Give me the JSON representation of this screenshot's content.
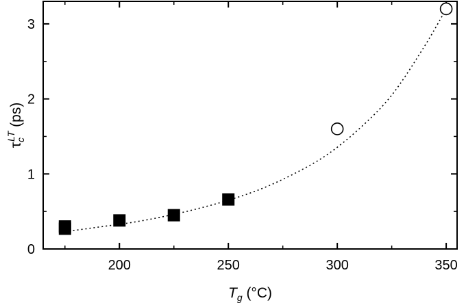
{
  "chart_data": {
    "type": "scatter",
    "xlabel": {
      "main": "T",
      "sub": "g",
      "rest": " (°C)"
    },
    "ylabel": {
      "main": "τ",
      "sub": "c",
      "sup": "LT",
      "rest": " (ps)"
    },
    "xlim": [
      165,
      355
    ],
    "ylim": [
      0,
      3.3
    ],
    "x_ticks": [
      200,
      250,
      300,
      350
    ],
    "x_minor_ticks": [
      175,
      225,
      275,
      325
    ],
    "y_ticks": [
      0,
      1,
      2,
      3
    ],
    "y_minor_ticks": [
      0.5,
      1.5,
      2.5
    ],
    "grid": false,
    "legend": "none",
    "series": [
      {
        "marker": "filled-square",
        "x": [
          175,
          175,
          200,
          225,
          250
        ],
        "y": [
          0.3,
          0.27,
          0.38,
          0.45,
          0.66
        ]
      },
      {
        "marker": "open-circle",
        "x": [
          300,
          350
        ],
        "y": [
          1.6,
          3.2
        ]
      }
    ],
    "fit_curve": {
      "style": "dotted",
      "x": [
        175,
        190,
        205,
        220,
        235,
        250,
        265,
        280,
        295,
        310,
        325,
        340,
        350
      ],
      "y": [
        0.23,
        0.29,
        0.35,
        0.43,
        0.53,
        0.65,
        0.8,
        1.0,
        1.25,
        1.6,
        2.05,
        2.7,
        3.2
      ]
    }
  }
}
